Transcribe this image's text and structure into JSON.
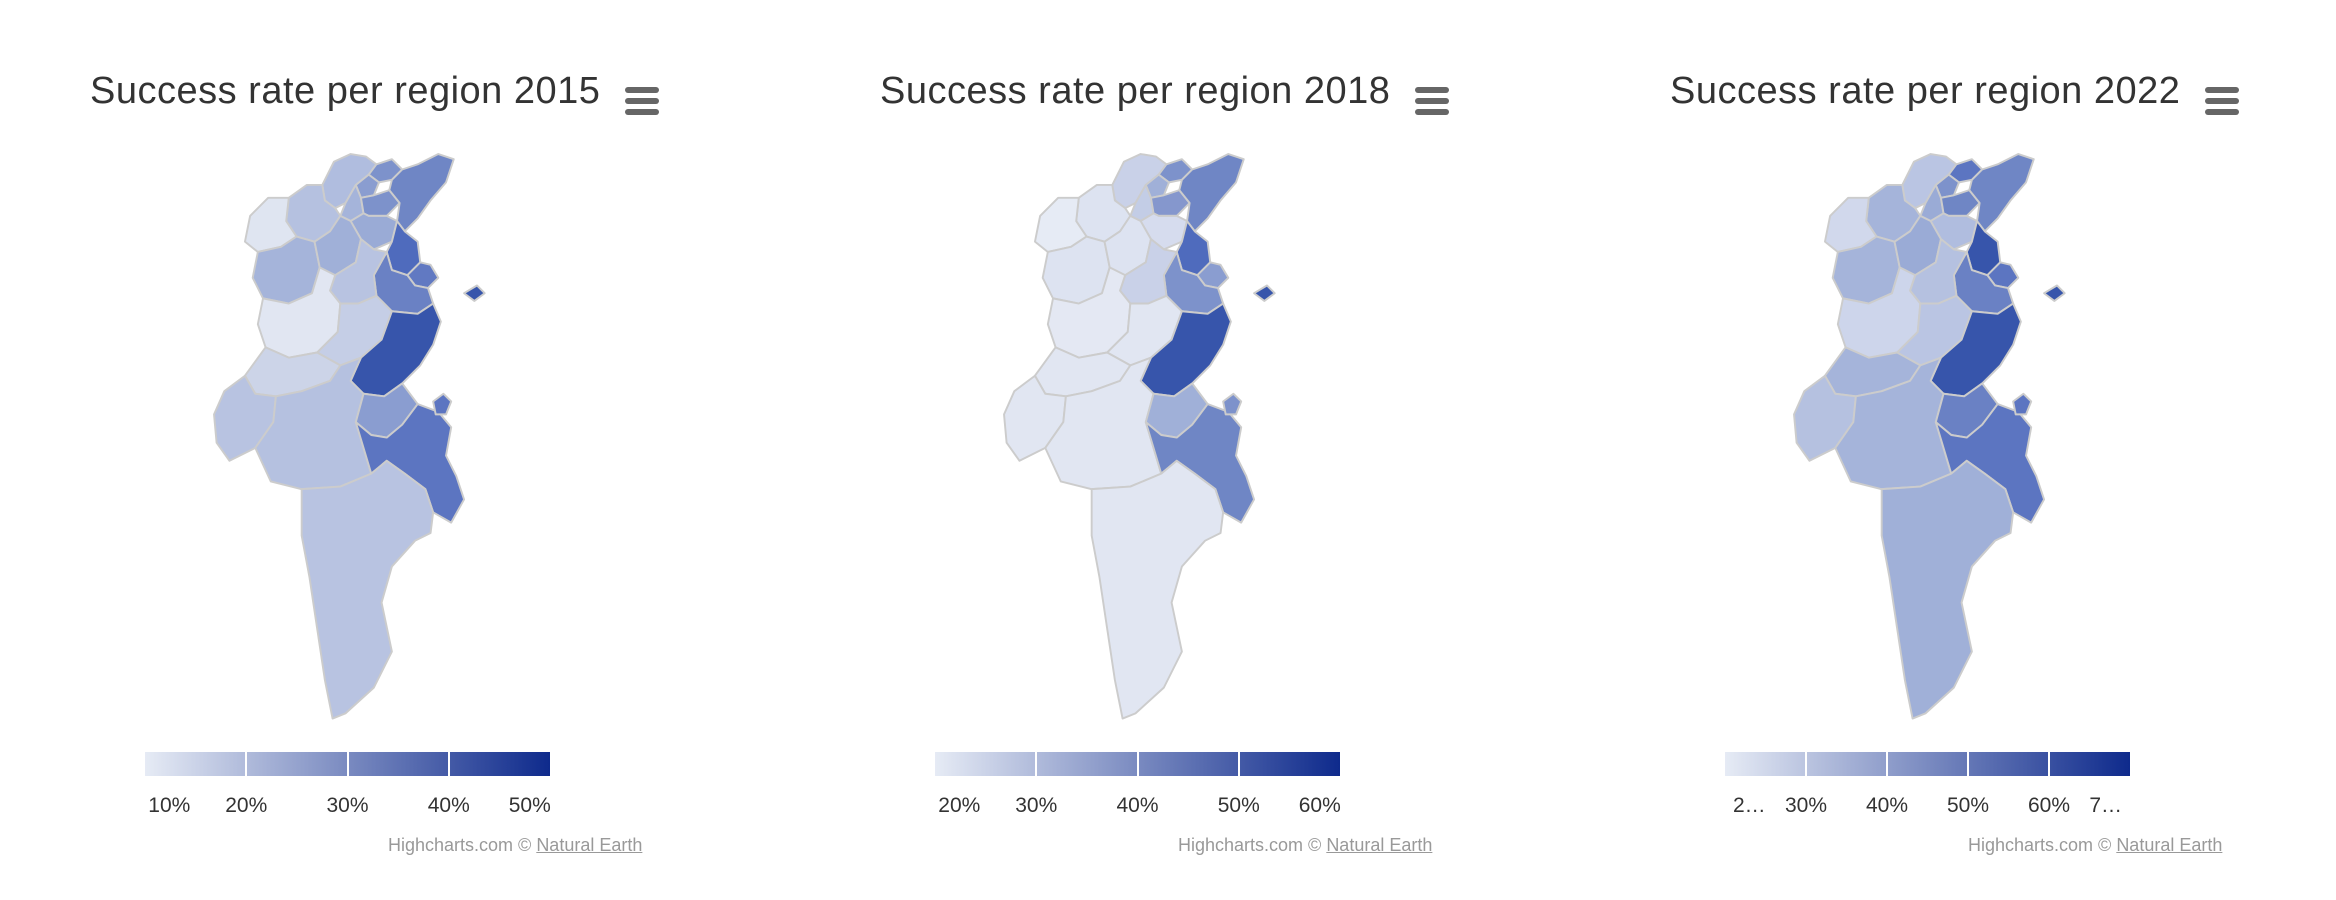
{
  "colors": {
    "scale_min": "#e6ebf5",
    "scale_max": "#0e2a8c",
    "border": "#cccccc"
  },
  "charts": [
    {
      "title": "Success rate per region 2015",
      "menu_icon": "hamburger-menu-icon",
      "legend_labels": [
        "10%",
        "20%",
        "30%",
        "40%",
        "50%"
      ],
      "credits_prefix": "Highcharts.com © ",
      "credits_link": "Natural Earth",
      "region_colors": {
        "bizerte": "#b0bddf",
        "tunis": "#7d92cb",
        "ariana": "#8a9dd0",
        "manouba": "#a5b4da",
        "benarous": "#7d92cb",
        "nabeul": "#6f86c5",
        "beja": "#b5c1e0",
        "jendouba": "#dfe5f1",
        "zaghouan": "#9aabd6",
        "kef": "#a5b4da",
        "siliana": "#a0b0d8",
        "sousse": "#4f6bbd",
        "monastir": "#6179c2",
        "mahdia": "#6a81c4",
        "kairouan": "#b8c3e1",
        "kasserine": "#e1e6f2",
        "sidibouzid": "#c5cee6",
        "sfax": "#3755ab",
        "gafsa": "#ccd4e8",
        "tozeur": "#b8c3e1",
        "kebili": "#b5c1e0",
        "gabes": "#8a9dd0",
        "medenine": "#5c75c1",
        "tataouine": "#b8c3e1",
        "djerba": "#5c75c1",
        "kerkennah": "#3755ab"
      }
    },
    {
      "title": "Success rate per region 2018",
      "menu_icon": "hamburger-menu-icon",
      "legend_labels": [
        "20%",
        "30%",
        "40%",
        "50%",
        "60%"
      ],
      "credits_prefix": "Highcharts.com © ",
      "credits_link": "Natural Earth",
      "region_colors": {
        "bizerte": "#c9d1e8",
        "tunis": "#7d92cb",
        "ariana": "#a0b0d8",
        "manouba": "#c3cde6",
        "benarous": "#8597cd",
        "nabeul": "#6f86c5",
        "beja": "#dde3f1",
        "jendouba": "#e6ebf5",
        "zaghouan": "#d6dcee",
        "kef": "#dde3f1",
        "siliana": "#dde3f1",
        "sousse": "#4f6bbd",
        "monastir": "#8a9dd0",
        "mahdia": "#7d92cb",
        "kairouan": "#c9d1e8",
        "kasserine": "#e4e8f3",
        "sidibouzid": "#e1e6f2",
        "sfax": "#3755ab",
        "gafsa": "#e1e6f2",
        "tozeur": "#e1e6f2",
        "kebili": "#e1e6f2",
        "gabes": "#a0b0d8",
        "medenine": "#6f86c5",
        "tataouine": "#e1e6f2",
        "djerba": "#7d92cb",
        "kerkennah": "#3755ab"
      }
    },
    {
      "title": "Success rate per region 2022",
      "menu_icon": "hamburger-menu-icon",
      "legend_labels": [
        "2…",
        "30%",
        "40%",
        "50%",
        "60%",
        "7…"
      ],
      "credits_prefix": "Highcharts.com © ",
      "credits_link": "Natural Earth",
      "region_colors": {
        "bizerte": "#bac5e3",
        "tunis": "#5c75c1",
        "ariana": "#7d92cb",
        "manouba": "#9aabd6",
        "benarous": "#6f86c5",
        "nabeul": "#6f86c5",
        "beja": "#a5b4da",
        "jendouba": "#d1d8ec",
        "zaghouan": "#b0bddf",
        "kef": "#a5b4da",
        "siliana": "#9aabd6",
        "sousse": "#3755ab",
        "monastir": "#5c75c1",
        "mahdia": "#6a81c4",
        "kairouan": "#b5c1e0",
        "kasserine": "#cdd5eb",
        "sidibouzid": "#bac5e3",
        "sfax": "#3755ab",
        "gafsa": "#a5b4da",
        "tozeur": "#b5c1e0",
        "kebili": "#a5b4da",
        "gabes": "#6a81c4",
        "medenine": "#5c75c1",
        "tataouine": "#a0b0d8",
        "djerba": "#5c75c1",
        "kerkennah": "#3755ab"
      }
    }
  ]
}
